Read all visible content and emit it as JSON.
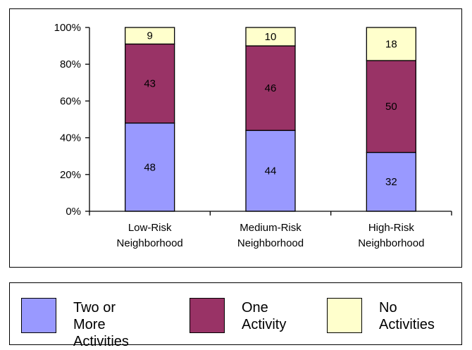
{
  "chart_data": {
    "type": "bar",
    "stacked": true,
    "categories": [
      "Low-Risk\nNeighborhood",
      "Medium-Risk\nNeighborhood",
      "High-Risk\nNeighborhood"
    ],
    "series": [
      {
        "name": "Two or More\nActivities",
        "values": [
          48,
          44,
          32
        ],
        "color": "#9999ff"
      },
      {
        "name": "One\nActivity",
        "values": [
          43,
          46,
          50
        ],
        "color": "#993366"
      },
      {
        "name": "No\nActivities",
        "values": [
          9,
          10,
          18
        ],
        "color": "#ffffcc"
      }
    ],
    "yticks": [
      "0%",
      "20%",
      "40%",
      "60%",
      "80%",
      "100%"
    ],
    "ylim": [
      0,
      100
    ],
    "grid": false,
    "legend_position": "bottom"
  }
}
